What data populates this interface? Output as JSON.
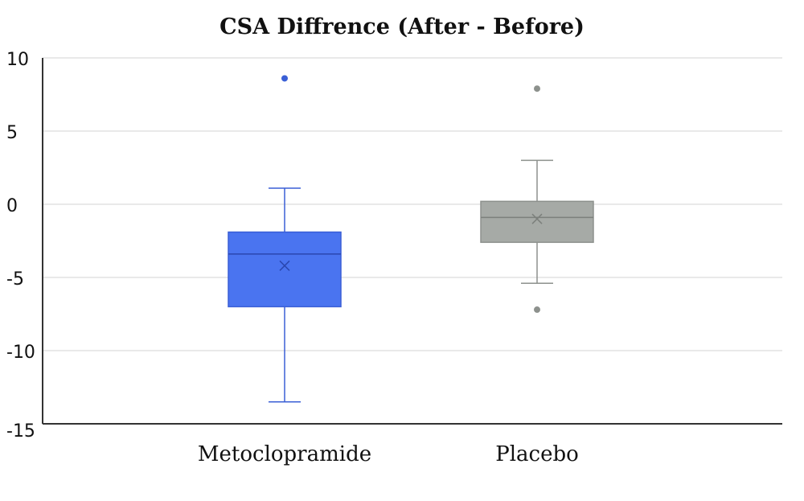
{
  "chart_data": {
    "type": "box",
    "title": "CSA Diffrence (After - Before)",
    "xlabel": "",
    "ylabel": "",
    "ylim": [
      -15,
      10
    ],
    "yticks": [
      10,
      5,
      0,
      -5,
      -10,
      -15
    ],
    "ytick_labels": [
      "10",
      "5",
      "0",
      "-5",
      "-10",
      "-15"
    ],
    "grid": true,
    "categories": [
      "Metoclopramide",
      "Placebo"
    ],
    "series": [
      {
        "category": "Metoclopramide",
        "color": "#4a74f0",
        "whisker_low": -13.5,
        "q1": -7.0,
        "median": -3.4,
        "mean": -4.2,
        "q3": -1.9,
        "whisker_high": 1.1,
        "outliers": [
          8.6
        ]
      },
      {
        "category": "Placebo",
        "color": "#a6aaa6",
        "whisker_low": -5.4,
        "q1": -2.6,
        "median": -0.9,
        "mean": -1.0,
        "q3": 0.2,
        "whisker_high": 3.0,
        "outliers": [
          7.9,
          -7.2
        ]
      }
    ]
  }
}
